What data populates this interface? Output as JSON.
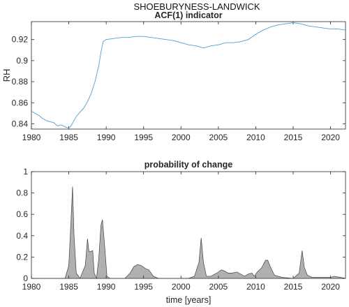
{
  "figure": {
    "suptitle": "SHOEBURYNESS-LANDWICK"
  },
  "chart_data": [
    {
      "type": "line",
      "title": "ACF(1) indicator",
      "xlabel": "",
      "ylabel": "RH",
      "xlim": [
        1980,
        2022
      ],
      "ylim": [
        0.835,
        0.937
      ],
      "xticks": [
        1980,
        1985,
        1990,
        1995,
        2000,
        2005,
        2010,
        2015,
        2020
      ],
      "yticks": [
        0.84,
        0.86,
        0.88,
        0.9,
        0.92
      ],
      "ytick_labels": [
        "0.84",
        "0.86",
        "0.88",
        "0.9",
        "0.92"
      ],
      "grid": false,
      "color": "#4a9fd6",
      "x": [
        1980,
        1980.5,
        1981,
        1981.5,
        1982,
        1982.5,
        1983,
        1983.5,
        1984,
        1984.5,
        1985,
        1985.3,
        1985.6,
        1986,
        1986.5,
        1987,
        1987.5,
        1988,
        1988.5,
        1989,
        1989.3,
        1989.6,
        1990,
        1991,
        1992,
        1993,
        1994,
        1995,
        1996,
        1997,
        1998,
        1999,
        2000,
        2001,
        2002,
        2003,
        2004,
        2005,
        2006,
        2007,
        2008,
        2009,
        2010,
        2011,
        2012,
        2013,
        2014,
        2015,
        2016,
        2017,
        2018,
        2019,
        2020,
        2021,
        2022
      ],
      "y": [
        0.852,
        0.85,
        0.848,
        0.845,
        0.843,
        0.842,
        0.841,
        0.838,
        0.839,
        0.837,
        0.836,
        0.838,
        0.842,
        0.847,
        0.851,
        0.855,
        0.861,
        0.869,
        0.88,
        0.895,
        0.908,
        0.918,
        0.92,
        0.921,
        0.922,
        0.922,
        0.923,
        0.923,
        0.922,
        0.921,
        0.92,
        0.919,
        0.917,
        0.915,
        0.914,
        0.912,
        0.914,
        0.915,
        0.917,
        0.917,
        0.918,
        0.92,
        0.925,
        0.929,
        0.932,
        0.934,
        0.935,
        0.936,
        0.935,
        0.933,
        0.932,
        0.931,
        0.93,
        0.93,
        0.929
      ]
    },
    {
      "type": "area",
      "title": "probability of change",
      "xlabel": "time [years]",
      "ylabel": "",
      "xlim": [
        1980,
        2022
      ],
      "ylim": [
        0,
        1
      ],
      "xticks": [
        1980,
        1985,
        1990,
        1995,
        2000,
        2005,
        2010,
        2015,
        2020
      ],
      "yticks": [
        0,
        0.2,
        0.4,
        0.6,
        0.8,
        1
      ],
      "ytick_labels": [
        "0",
        "0.2",
        "0.4",
        "0.6",
        "0.8",
        "1"
      ],
      "grid": false,
      "fill_color": "#b0b0b0",
      "line_color": "#404040",
      "x": [
        1980,
        1983,
        1984.5,
        1985,
        1985.3,
        1985.5,
        1985.7,
        1986,
        1986.5,
        1987.2,
        1987.5,
        1987.7,
        1987.9,
        1988.2,
        1988.4,
        1988.7,
        1989,
        1989.3,
        1989.5,
        1989.8,
        1990.1,
        1990.5,
        1992.5,
        1993.2,
        1993.7,
        1994.2,
        1994.7,
        1995.3,
        1995.7,
        1996.3,
        1997,
        2001,
        2001.8,
        2002.4,
        2002.7,
        2003,
        2003.4,
        2004,
        2004.8,
        2005.4,
        2005.8,
        2006.3,
        2006.8,
        2007.5,
        2008,
        2008.5,
        2009,
        2009.5,
        2009.8,
        2010.2,
        2010.8,
        2011.3,
        2011.6,
        2012,
        2012.5,
        2013.5,
        2015,
        2015.8,
        2016.2,
        2016.5,
        2016.9,
        2017.5,
        2018.5,
        2020,
        2020.5,
        2021.3,
        2022
      ],
      "y": [
        0,
        0,
        0,
        0.12,
        0.55,
        0.86,
        0.4,
        0.05,
        0,
        0.12,
        0.37,
        0.25,
        0.25,
        0.26,
        0.05,
        0,
        0.18,
        0.5,
        0.55,
        0.3,
        0.02,
        0,
        0,
        0.05,
        0.11,
        0.13,
        0.12,
        0.09,
        0.08,
        0.02,
        0,
        0,
        0.02,
        0.15,
        0.38,
        0.15,
        0.02,
        0.02,
        0.05,
        0.08,
        0.07,
        0.05,
        0.05,
        0.06,
        0.04,
        0.02,
        0.04,
        0.05,
        0.02,
        0.06,
        0.1,
        0.17,
        0.17,
        0.1,
        0.03,
        0.01,
        0,
        0.05,
        0.26,
        0.1,
        0.03,
        0.01,
        0.01,
        0.01,
        0.02,
        0.01,
        0
      ]
    }
  ]
}
